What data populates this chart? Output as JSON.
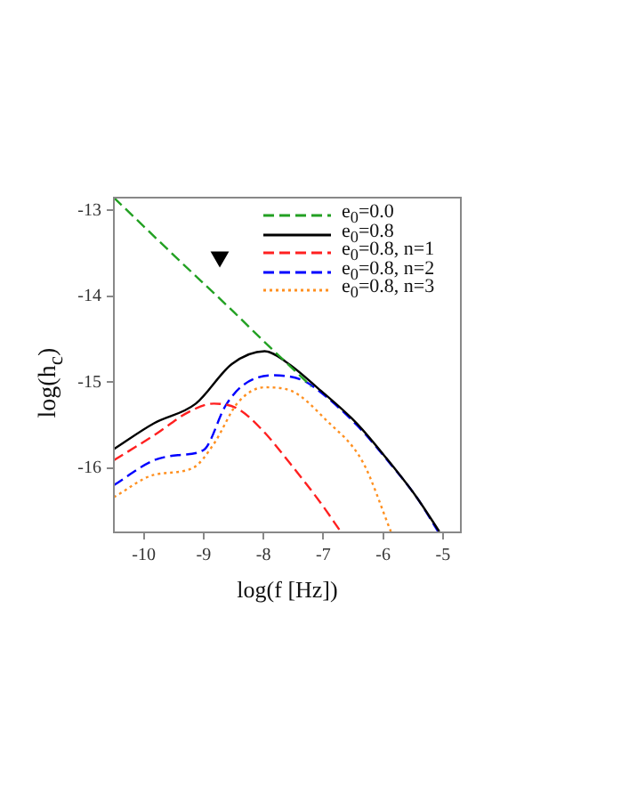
{
  "chart_data": {
    "type": "line",
    "xlabel": "log(f [Hz])",
    "ylabel": "log(h$_{c}$)",
    "xlim": [
      -10.5,
      -4.7
    ],
    "ylim": [
      -16.75,
      -12.85
    ],
    "xticks": [
      -10,
      -9,
      -8,
      -7,
      -6,
      -5
    ],
    "yticks": [
      -16,
      -15,
      -14,
      -13
    ],
    "grid": false,
    "legend": "top right",
    "marker": "none",
    "series": [
      {
        "name": "e$_{0}$=0.0",
        "color": "#22a022",
        "line_style": "dashed",
        "x": [
          -10.5,
          -9.5,
          -8.5,
          -8,
          -7.5,
          -7.2
        ],
        "values": [
          -12.85,
          -13.52,
          -14.18,
          -14.52,
          -14.85,
          -15.05
        ]
      },
      {
        "name": "e$_{0}$=0.8",
        "color": "#000000",
        "line_style": "solid",
        "x": [
          -10.5,
          -9.83,
          -9.13,
          -8.53,
          -7.98,
          -7.63,
          -7.04,
          -6.44,
          -5.94,
          -5.44,
          -5.06
        ],
        "values": [
          -15.78,
          -15.48,
          -15.25,
          -14.79,
          -14.64,
          -14.76,
          -15.1,
          -15.48,
          -15.89,
          -16.34,
          -16.74
        ]
      },
      {
        "name": "e$_{0}$=0.8, n=1",
        "color": "#ff2020",
        "line_style": "dashed",
        "x": [
          -10.5,
          -9.83,
          -9.23,
          -8.83,
          -8.43,
          -8.03,
          -7.54,
          -7.04,
          -6.71
        ],
        "values": [
          -15.91,
          -15.62,
          -15.34,
          -15.25,
          -15.31,
          -15.55,
          -15.96,
          -16.41,
          -16.74
        ]
      },
      {
        "name": "e$_{0}$=0.8, n=2",
        "color": "#0000ff",
        "line_style": "dashed",
        "x": [
          -10.5,
          -9.83,
          -9.43,
          -9.0,
          -8.63,
          -8.33,
          -7.83,
          -7.34,
          -7.04,
          -6.44,
          -5.94,
          -5.44,
          -5.08
        ],
        "values": [
          -16.2,
          -15.91,
          -15.85,
          -15.79,
          -15.27,
          -15.03,
          -14.92,
          -14.98,
          -15.12,
          -15.5,
          -15.9,
          -16.34,
          -16.74
        ]
      },
      {
        "name": "e$_{0}$=0.8, n=3",
        "color": "#ff9020",
        "line_style": "dotted",
        "x": [
          -10.5,
          -9.83,
          -9.18,
          -8.83,
          -8.43,
          -7.98,
          -7.54,
          -6.94,
          -6.34,
          -5.87
        ],
        "values": [
          -16.34,
          -16.08,
          -16.0,
          -15.72,
          -15.24,
          -15.06,
          -15.1,
          -15.45,
          -15.93,
          -16.74
        ]
      },
      {
        "type": "scatter",
        "marker": "triangle",
        "color": "#000000",
        "x": [
          -8.73
        ],
        "values": [
          -13.54
        ]
      }
    ]
  }
}
